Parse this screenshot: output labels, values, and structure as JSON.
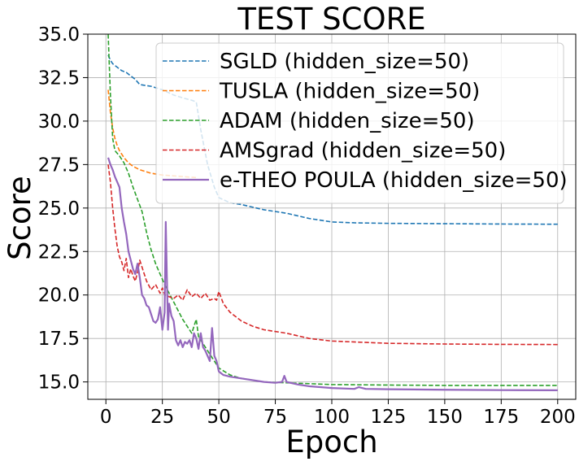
{
  "chart_data": {
    "type": "line",
    "title": "TEST SCORE",
    "xlabel": "Epoch",
    "ylabel": "Score",
    "xlim": [
      -8,
      208
    ],
    "ylim": [
      14.0,
      35.0
    ],
    "xticks": [
      0,
      25,
      50,
      75,
      100,
      125,
      150,
      175,
      200
    ],
    "yticks": [
      15.0,
      17.5,
      20.0,
      22.5,
      25.0,
      27.5,
      30.0,
      32.5,
      35.0
    ],
    "ytick_labels": [
      "15.0",
      "17.5",
      "20.0",
      "22.5",
      "25.0",
      "27.5",
      "30.0",
      "32.5",
      "35.0"
    ],
    "xtick_labels": [
      "0",
      "25",
      "50",
      "75",
      "100",
      "125",
      "150",
      "175",
      "200"
    ],
    "grid": true,
    "legend_position": "top-right",
    "series": [
      {
        "name": "SGLD (hidden_size=50)",
        "color": "#1f77b4",
        "dashed": true,
        "x": [
          1,
          2,
          3,
          5,
          7,
          9,
          11,
          13,
          15,
          20,
          25,
          30,
          35,
          38,
          40,
          42,
          45,
          48,
          50,
          55,
          60,
          70,
          80,
          90,
          100,
          110,
          125,
          150,
          175,
          200
        ],
        "y": [
          33.8,
          33.5,
          33.3,
          33.1,
          32.9,
          32.8,
          32.6,
          32.4,
          32.1,
          32.0,
          31.8,
          31.5,
          31.3,
          31.2,
          31.1,
          29.5,
          27.5,
          26.2,
          25.6,
          25.3,
          25.2,
          24.9,
          24.7,
          24.4,
          24.2,
          24.15,
          24.12,
          24.1,
          24.08,
          24.07
        ]
      },
      {
        "name": "TUSLA (hidden_size=50)",
        "color": "#ff7f0e",
        "dashed": true,
        "x": [
          1,
          2,
          3,
          4,
          5,
          6,
          8,
          10,
          12,
          15,
          20,
          25,
          30,
          35,
          40
        ],
        "y": [
          31.8,
          30.5,
          29.6,
          29.0,
          28.6,
          28.3,
          27.9,
          27.6,
          27.4,
          27.2,
          27.0,
          26.9,
          26.85,
          26.8,
          26.75
        ]
      },
      {
        "name": "ADAM (hidden_size=50)",
        "color": "#2ca02c",
        "dashed": true,
        "x": [
          1,
          2,
          3,
          4,
          6,
          8,
          10,
          12,
          14,
          16,
          18,
          20,
          22,
          24,
          26,
          28,
          30,
          32,
          34,
          36,
          38,
          40,
          41,
          42,
          44,
          46,
          48,
          50,
          55,
          60,
          70,
          80,
          90,
          100,
          125,
          150,
          175,
          200
        ],
        "y": [
          35.0,
          31.5,
          29.0,
          28.3,
          28.0,
          27.6,
          27.0,
          26.2,
          25.5,
          24.8,
          23.6,
          22.6,
          21.8,
          21.2,
          20.6,
          20.1,
          19.6,
          19.1,
          18.6,
          18.2,
          17.8,
          18.6,
          17.6,
          17.4,
          17.0,
          16.6,
          16.2,
          15.8,
          15.4,
          15.2,
          15.0,
          14.95,
          14.9,
          14.85,
          14.82,
          14.8,
          14.8,
          14.8
        ]
      },
      {
        "name": "AMSgrad (hidden_size=50)",
        "color": "#d62728",
        "dashed": true,
        "x": [
          1,
          2,
          3,
          4,
          5,
          6,
          7,
          8,
          9,
          10,
          11,
          12,
          13,
          14,
          15,
          16,
          17,
          18,
          20,
          22,
          24,
          25,
          26,
          28,
          30,
          32,
          34,
          36,
          38,
          40,
          42,
          44,
          46,
          48,
          49,
          50,
          52,
          55,
          60,
          65,
          70,
          80,
          90,
          100,
          125,
          150,
          175,
          200
        ],
        "y": [
          27.5,
          26.5,
          25.0,
          23.8,
          22.8,
          22.2,
          21.9,
          21.4,
          22.1,
          21.0,
          21.5,
          21.1,
          20.8,
          21.3,
          22.0,
          21.6,
          21.2,
          20.8,
          20.3,
          20.6,
          20.1,
          20.4,
          20.0,
          19.9,
          19.8,
          20.0,
          19.7,
          20.3,
          19.9,
          20.1,
          19.8,
          20.1,
          19.7,
          19.8,
          19.7,
          20.2,
          19.5,
          19.0,
          18.5,
          18.2,
          18.0,
          17.8,
          17.5,
          17.35,
          17.22,
          17.18,
          17.16,
          17.15
        ]
      },
      {
        "name": "e-THEO POULA (hidden_size=50)",
        "color": "#9467bd",
        "dashed": false,
        "x": [
          1,
          2,
          3,
          4,
          5,
          6,
          7,
          8,
          9,
          10,
          11,
          12,
          13,
          14,
          15,
          16,
          17,
          18,
          19,
          20,
          21,
          22,
          23,
          24,
          25,
          26,
          26.5,
          27,
          27.5,
          28,
          29,
          30,
          31,
          32,
          33,
          34,
          35,
          36,
          37,
          38,
          39,
          40,
          41,
          42,
          43,
          44,
          45,
          46,
          47,
          48,
          49,
          50,
          52,
          55,
          60,
          65,
          70,
          75,
          78,
          79,
          80,
          85,
          90,
          100,
          110,
          112,
          115,
          125,
          150,
          175,
          200
        ],
        "y": [
          27.9,
          27.5,
          27.2,
          26.8,
          26.5,
          26.2,
          25.0,
          24.2,
          23.5,
          22.5,
          22.0,
          21.5,
          21.2,
          21.8,
          21.0,
          20.0,
          19.8,
          19.4,
          19.3,
          18.9,
          18.5,
          18.4,
          18.6,
          19.3,
          18.0,
          19.0,
          24.2,
          21.0,
          18.0,
          19.5,
          18.8,
          18.5,
          17.4,
          17.1,
          17.4,
          17.0,
          17.3,
          17.2,
          17.4,
          17.0,
          17.8,
          17.5,
          16.9,
          17.8,
          17.0,
          16.8,
          16.5,
          16.2,
          18.1,
          16.5,
          16.2,
          15.6,
          15.4,
          15.3,
          15.2,
          15.1,
          15.0,
          14.95,
          15.0,
          15.35,
          15.0,
          14.85,
          14.75,
          14.65,
          14.6,
          14.7,
          14.6,
          14.58,
          14.55,
          14.53,
          14.52
        ]
      }
    ]
  }
}
